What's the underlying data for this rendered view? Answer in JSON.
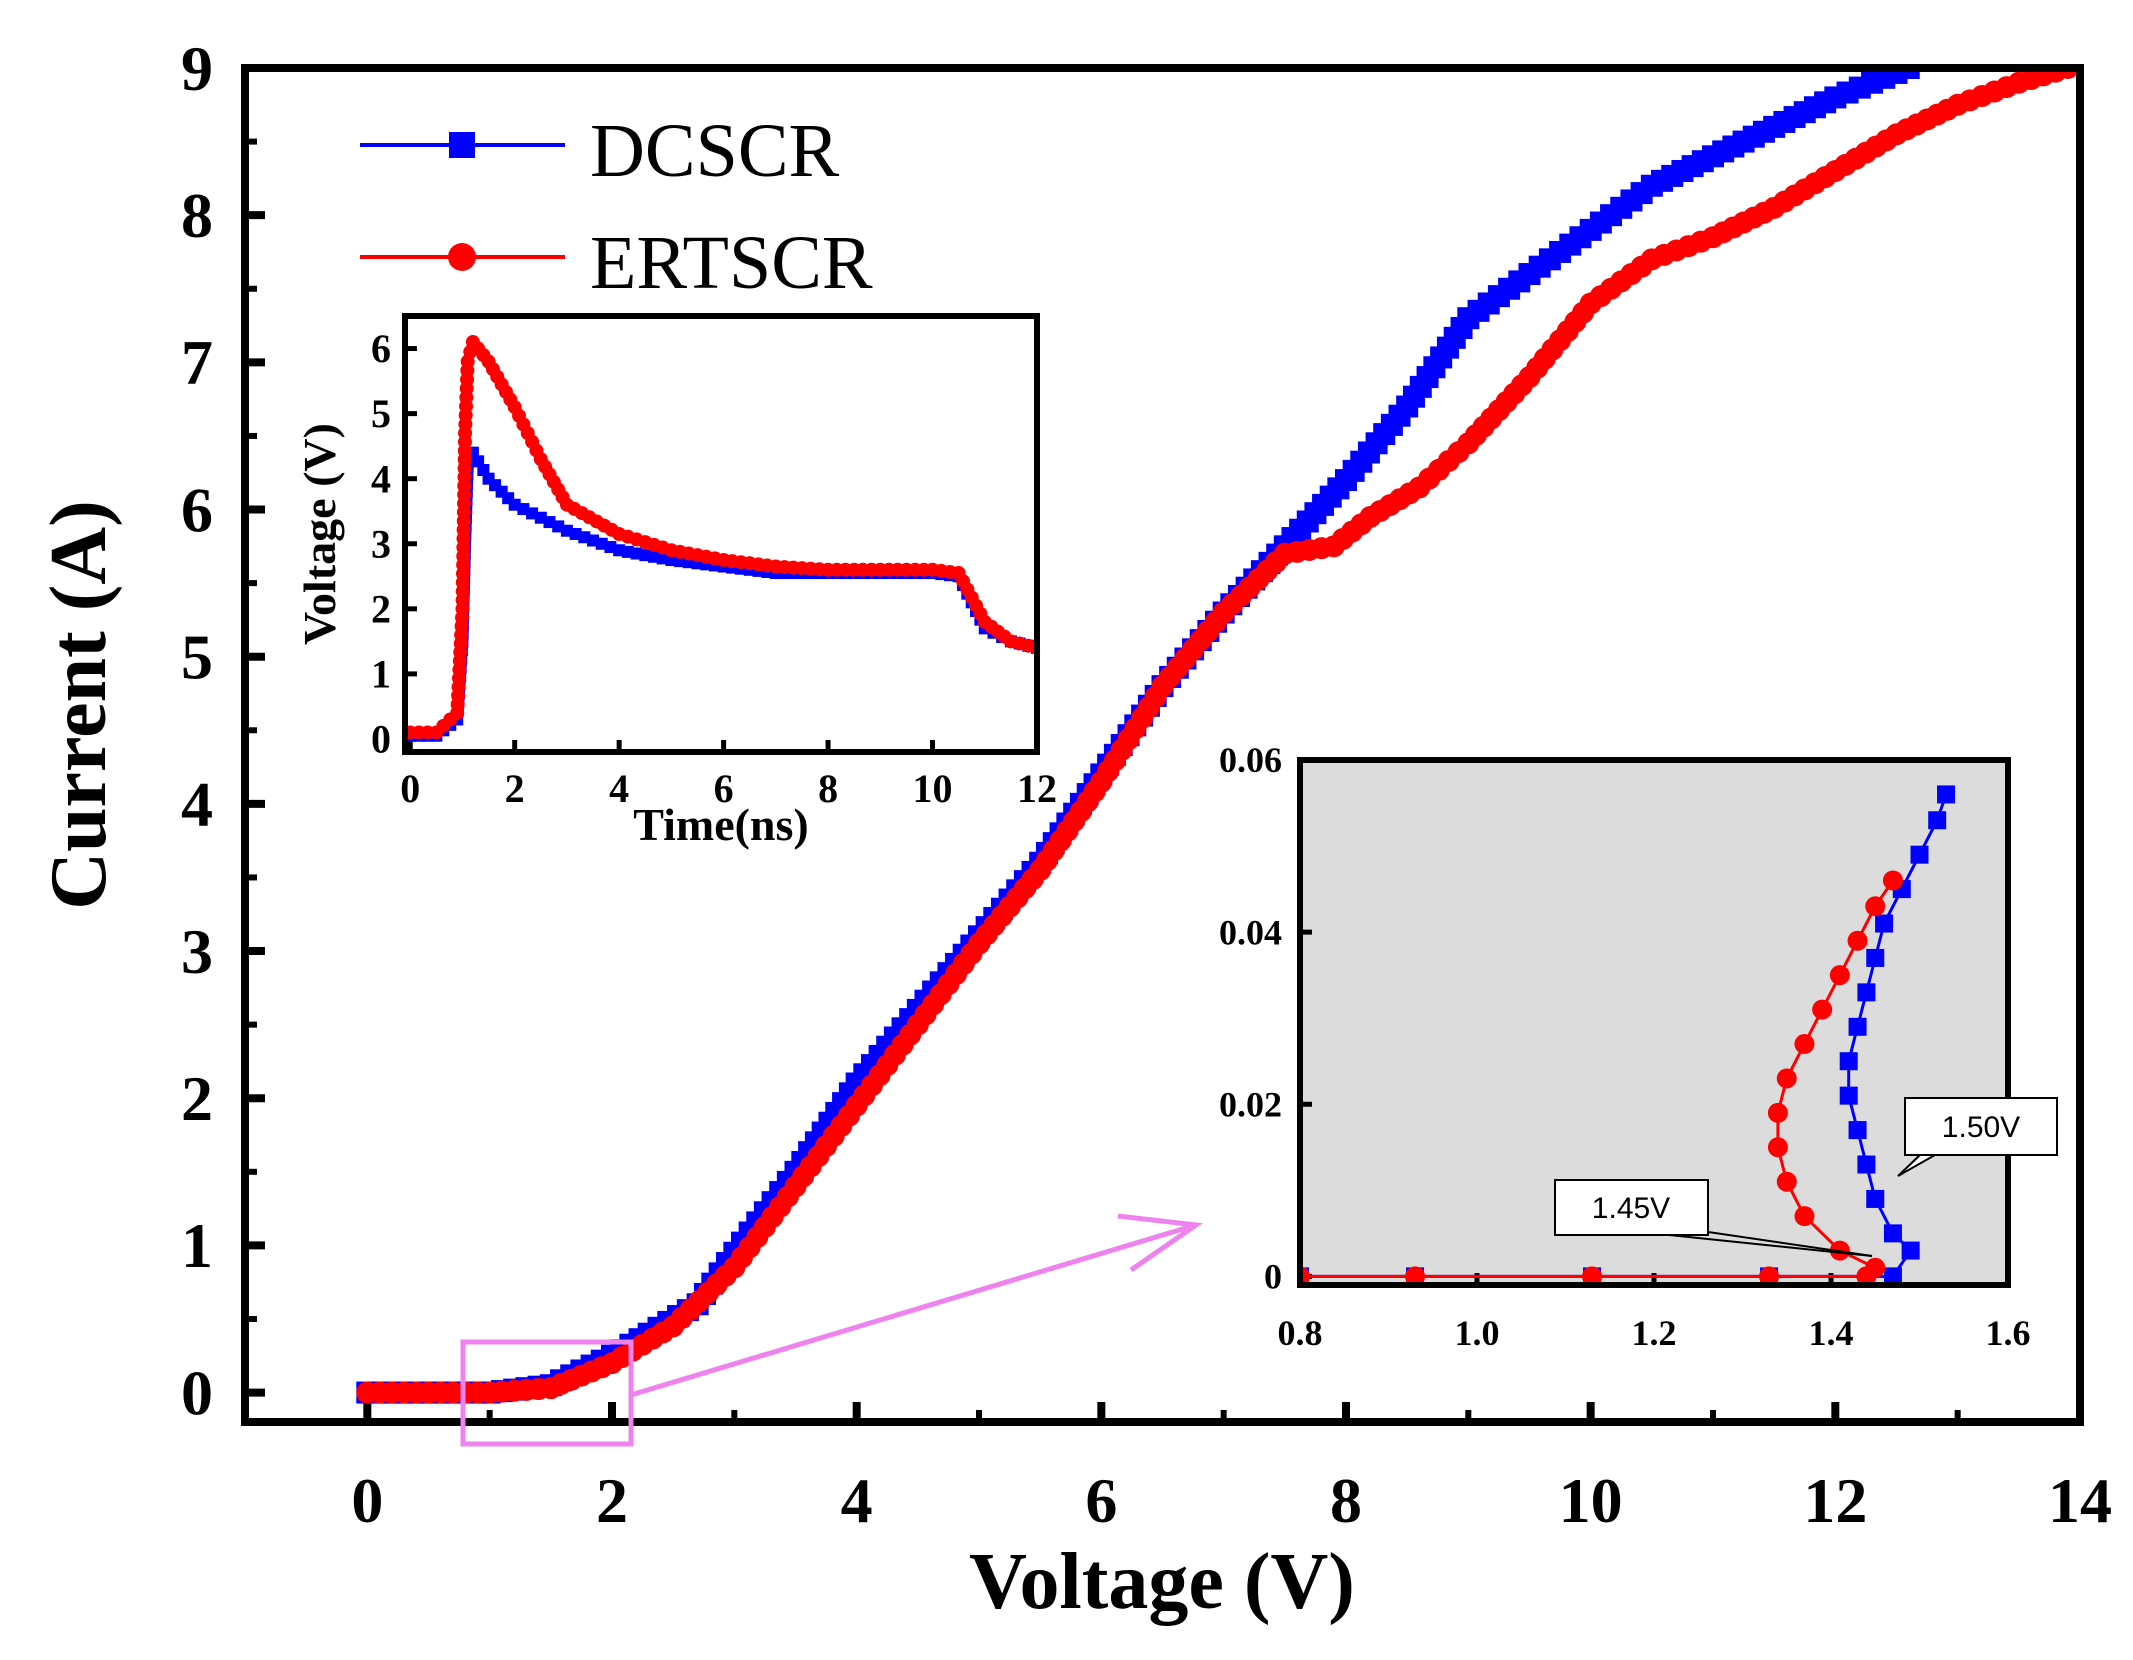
{
  "colors": {
    "dcscr": "#0000ff",
    "ertscr": "#ff0000",
    "zoom": "#ee82ee",
    "inset_bg": "#dcdcdc"
  },
  "chart_data": [
    {
      "id": "main",
      "type": "line",
      "xlabel": "Voltage (V)",
      "ylabel": "Current (A)",
      "xlim": [
        -1,
        14
      ],
      "ylim": [
        -0.2,
        9
      ],
      "xticks": [
        0,
        2,
        4,
        6,
        8,
        10,
        12,
        14
      ],
      "yticks": [
        0,
        1,
        2,
        3,
        4,
        5,
        6,
        7,
        8,
        9
      ],
      "legend": {
        "position": "top-left",
        "entries": [
          "DCSCR",
          "ERTSCR"
        ]
      },
      "series": [
        {
          "name": "DCSCR",
          "color": "#0000ff",
          "marker": "square",
          "x": [
            0.0,
            1.0,
            1.5,
            2.0,
            2.3,
            2.7,
            3.0,
            3.5,
            4.0,
            4.5,
            5.0,
            5.5,
            6.0,
            6.5,
            7.0,
            7.5,
            8.0,
            8.5,
            9.0,
            9.5,
            10.0,
            10.5,
            11.0,
            11.5,
            12.0,
            12.3,
            12.6
          ],
          "y": [
            0.0,
            0.0,
            0.05,
            0.25,
            0.4,
            0.6,
            0.95,
            1.5,
            2.1,
            2.6,
            3.1,
            3.6,
            4.2,
            4.8,
            5.3,
            5.75,
            6.2,
            6.7,
            7.3,
            7.6,
            7.9,
            8.2,
            8.4,
            8.6,
            8.8,
            8.9,
            9.0
          ]
        },
        {
          "name": "ERTSCR",
          "color": "#ff0000",
          "marker": "circle",
          "x": [
            0.0,
            1.0,
            1.5,
            2.0,
            2.5,
            3.0,
            3.5,
            4.0,
            4.5,
            5.0,
            5.5,
            6.0,
            6.5,
            7.0,
            7.5,
            7.9,
            8.2,
            8.6,
            9.0,
            9.5,
            10.0,
            10.5,
            11.0,
            11.5,
            12.0,
            12.5,
            13.0,
            13.5,
            13.9
          ],
          "y": [
            0.0,
            0.0,
            0.03,
            0.2,
            0.45,
            0.85,
            1.4,
            1.95,
            2.5,
            3.05,
            3.55,
            4.15,
            4.8,
            5.3,
            5.7,
            5.75,
            5.95,
            6.15,
            6.45,
            6.9,
            7.4,
            7.7,
            7.85,
            8.05,
            8.3,
            8.55,
            8.75,
            8.9,
            9.0
          ]
        }
      ]
    },
    {
      "id": "inset_transient",
      "type": "line",
      "xlabel": "Time(ns)",
      "ylabel": "Voltage (V)",
      "xlim": [
        -0.1,
        12
      ],
      "ylim": [
        -0.2,
        6.5
      ],
      "xticks": [
        0,
        2,
        4,
        6,
        8,
        10,
        12
      ],
      "yticks": [
        0,
        1,
        2,
        3,
        4,
        5,
        6
      ],
      "series": [
        {
          "name": "DCSCR",
          "color": "#0000ff",
          "marker": "square",
          "x": [
            0.0,
            0.5,
            0.9,
            1.0,
            1.05,
            1.1,
            1.2,
            1.5,
            2.0,
            2.5,
            3.0,
            4.0,
            5.0,
            6.0,
            7.0,
            8.0,
            9.0,
            10.0,
            10.5,
            11.0,
            11.5,
            12.0
          ],
          "y": [
            0.05,
            0.05,
            0.3,
            1.5,
            3.0,
            4.2,
            4.4,
            4.0,
            3.6,
            3.4,
            3.2,
            2.9,
            2.75,
            2.65,
            2.55,
            2.55,
            2.55,
            2.55,
            2.5,
            1.7,
            1.5,
            1.4
          ]
        },
        {
          "name": "ERTSCR",
          "color": "#ff0000",
          "marker": "circle",
          "x": [
            0.0,
            0.5,
            0.9,
            1.0,
            1.05,
            1.1,
            1.2,
            1.5,
            2.0,
            2.5,
            3.0,
            4.0,
            5.0,
            6.0,
            7.0,
            8.0,
            9.0,
            10.0,
            10.5,
            11.0,
            11.5,
            12.0
          ],
          "y": [
            0.1,
            0.1,
            0.4,
            2.0,
            4.7,
            5.8,
            6.1,
            5.8,
            5.1,
            4.3,
            3.6,
            3.15,
            2.9,
            2.75,
            2.65,
            2.6,
            2.6,
            2.6,
            2.55,
            1.8,
            1.5,
            1.4
          ]
        }
      ]
    },
    {
      "id": "inset_zoom",
      "type": "line",
      "background": "#dcdcdc",
      "xlim": [
        0.8,
        1.6
      ],
      "ylim": [
        -0.001,
        0.06
      ],
      "xticks": [
        0.8,
        1.0,
        1.2,
        1.4,
        1.6
      ],
      "xtick_labels": [
        "0.8",
        "1.0",
        "1.2",
        "1.4",
        "1.6"
      ],
      "yticks": [
        0,
        0.02,
        0.04,
        0.06
      ],
      "ytick_labels": [
        "0",
        "0.02",
        "0.04",
        "0.06"
      ],
      "annotations": [
        {
          "text": "1.45V",
          "target": [
            1.44,
            0.002
          ],
          "series": "ERTSCR"
        },
        {
          "text": "1.50V",
          "target": [
            1.48,
            0.008
          ],
          "series": "DCSCR"
        }
      ],
      "series": [
        {
          "name": "DCSCR",
          "color": "#0000ff",
          "marker": "square",
          "x": [
            0.8,
            0.93,
            1.13,
            1.33,
            1.47,
            1.49,
            1.47,
            1.45,
            1.44,
            1.43,
            1.42,
            1.42,
            1.43,
            1.44,
            1.45,
            1.46,
            1.48,
            1.5,
            1.52,
            1.53
          ],
          "y": [
            0.0,
            0.0,
            0.0,
            0.0,
            0.0,
            0.003,
            0.005,
            0.009,
            0.013,
            0.017,
            0.021,
            0.025,
            0.029,
            0.033,
            0.037,
            0.041,
            0.045,
            0.049,
            0.053,
            0.056
          ]
        },
        {
          "name": "ERTSCR",
          "color": "#ff0000",
          "marker": "circle",
          "x": [
            0.8,
            0.93,
            1.13,
            1.33,
            1.44,
            1.45,
            1.41,
            1.37,
            1.35,
            1.34,
            1.34,
            1.35,
            1.37,
            1.39,
            1.41,
            1.43,
            1.45,
            1.47
          ],
          "y": [
            0.0,
            0.0,
            0.0,
            0.0,
            0.0,
            0.001,
            0.003,
            0.007,
            0.011,
            0.015,
            0.019,
            0.023,
            0.027,
            0.031,
            0.035,
            0.039,
            0.043,
            0.046
          ]
        }
      ]
    }
  ]
}
